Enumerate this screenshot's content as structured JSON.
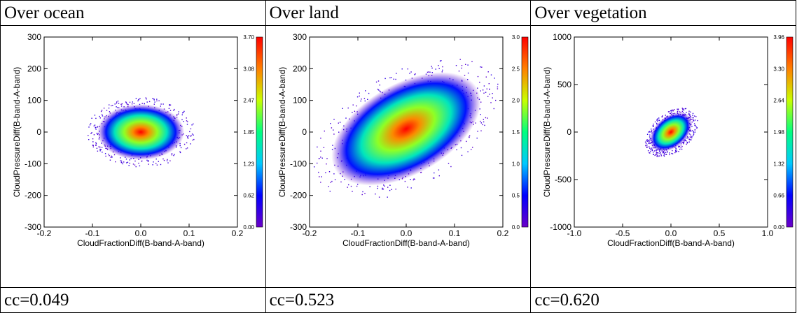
{
  "panels": [
    {
      "header": "Over ocean",
      "footer": "cc=0.049",
      "chart_data": {
        "type": "heatmap",
        "xlabel": "CloudFractionDiff(B-band-A-band)",
        "ylabel": "CloudPressureDiff(B-band-A-band)",
        "xlim": [
          -0.2,
          0.2
        ],
        "ylim": [
          -300,
          300
        ],
        "xticks": [
          "-0.2",
          "-0.1",
          "0.0",
          "0.1",
          "0.2"
        ],
        "yticks": [
          "300",
          "200",
          "100",
          "0",
          "-100",
          "-200",
          "-300"
        ],
        "colorbar": {
          "range": [
            0.0,
            3.7
          ],
          "ticks": [
            "3.70",
            "3.08",
            "2.47",
            "1.85",
            "1.23",
            "0.62",
            "0.00"
          ]
        },
        "density": {
          "center": [
            0.0,
            0.0
          ],
          "spread_x": 0.09,
          "spread_y": 160,
          "orientation_deg": 0
        }
      }
    },
    {
      "header": "Over land",
      "footer": "cc=0.523",
      "chart_data": {
        "type": "heatmap",
        "xlabel": "CloudFractionDiff(B-band-A-band)",
        "ylabel": "CloudPressureDiff(B-band-A-band)",
        "xlim": [
          -0.2,
          0.2
        ],
        "ylim": [
          -300,
          300
        ],
        "xticks": [
          "-0.2",
          "-0.1",
          "0.0",
          "0.1",
          "0.2"
        ],
        "yticks": [
          "300",
          "200",
          "100",
          "0",
          "-100",
          "-200",
          "-300"
        ],
        "colorbar": {
          "range": [
            0.0,
            3.0
          ],
          "ticks": [
            "3.0",
            "2.5",
            "2.0",
            "1.5",
            "1.0",
            "0.5",
            "0.0"
          ]
        },
        "density": {
          "center": [
            0.0,
            10.0
          ],
          "spread_x": 0.17,
          "spread_y": 260,
          "orientation_deg": 30
        }
      }
    },
    {
      "header": "Over vegetation",
      "footer": "cc=0.620",
      "chart_data": {
        "type": "heatmap",
        "xlabel": "CloudFractionDiff(B-band-A-band)",
        "ylabel": "CloudPressureDiff(B-band-A-band)",
        "xlim": [
          -1.0,
          1.0
        ],
        "ylim": [
          -1000,
          1000
        ],
        "xticks": [
          "-1.0",
          "-0.5",
          "0.0",
          "0.5",
          "1.0"
        ],
        "yticks": [
          "1000",
          "500",
          "0",
          "-500",
          "-1000"
        ],
        "colorbar": {
          "range": [
            0.0,
            3.96
          ],
          "ticks": [
            "3.96",
            "3.30",
            "2.64",
            "1.98",
            "1.32",
            "0.66",
            "0.00"
          ]
        },
        "density": {
          "center": [
            0.0,
            0.0
          ],
          "spread_x": 0.25,
          "spread_y": 300,
          "orientation_deg": 40
        }
      }
    }
  ],
  "colors": {
    "border": "#000000",
    "scale": [
      "#6a00c8",
      "#0000ff",
      "#00c8ff",
      "#00ff80",
      "#c8ff00",
      "#ff8000",
      "#ff0000"
    ]
  }
}
